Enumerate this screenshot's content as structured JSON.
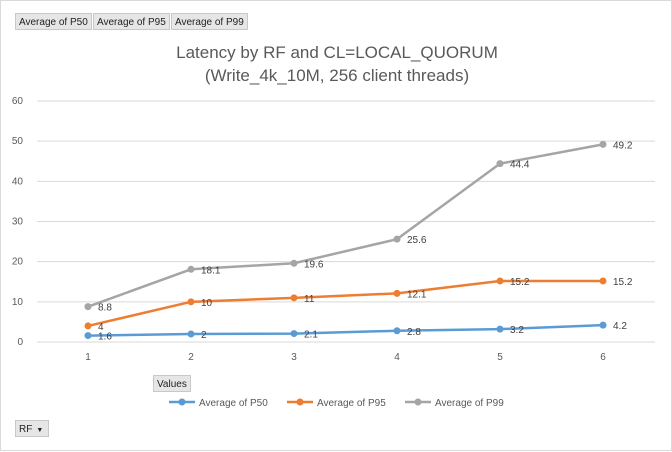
{
  "pivot": {
    "value_fields": [
      "Average of P50",
      "Average of P95",
      "Average of P99"
    ],
    "values_button": "Values",
    "axis_field": "RF"
  },
  "chart_data": {
    "type": "line",
    "title_line1": "Latency by RF and CL=LOCAL_QUORUM",
    "title_line2": "(Write_4k_10M, 256 client threads)",
    "categories": [
      "1",
      "2",
      "3",
      "4",
      "5",
      "6"
    ],
    "ylim": [
      0,
      60
    ],
    "yticks": [
      "0",
      "10",
      "20",
      "30",
      "40",
      "50",
      "60"
    ],
    "grid": true,
    "legend_position": "bottom",
    "series": [
      {
        "name": "Average of P50",
        "color": "#5b9bd5",
        "values": [
          1.6,
          2,
          2.1,
          2.8,
          3.2,
          4.2
        ],
        "labels": [
          "1.6",
          "2",
          "2.1",
          "2.8",
          "3.2",
          "4.2"
        ]
      },
      {
        "name": "Average of P95",
        "color": "#ed7d31",
        "values": [
          4,
          10,
          11,
          12.1,
          15.2,
          15.2
        ],
        "labels": [
          "4",
          "10",
          "11",
          "12.1",
          "15.2",
          "15.2"
        ]
      },
      {
        "name": "Average of P99",
        "color": "#a5a5a5",
        "values": [
          8.8,
          18.1,
          19.6,
          25.6,
          44.4,
          49.2
        ],
        "labels": [
          "8.8",
          "18.1",
          "19.6",
          "25.6",
          "44.4",
          "49.2"
        ]
      }
    ]
  }
}
